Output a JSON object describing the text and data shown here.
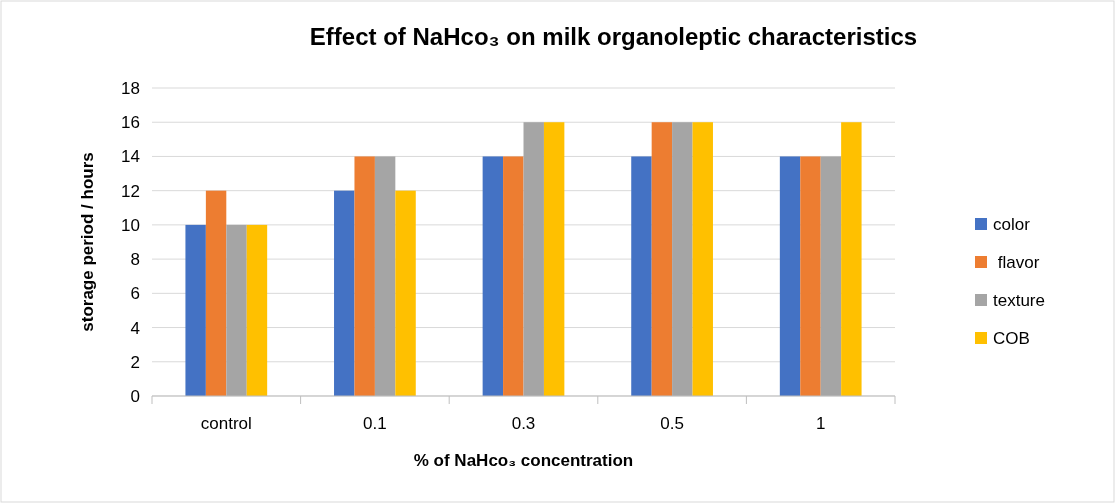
{
  "chart_data": {
    "type": "bar",
    "title": "Effect of NaHco₃ on milk organoleptic  characteristics",
    "xlabel": "% of NaHco₃ concentration",
    "ylabel": "storage period / hours",
    "categories": [
      "control",
      "0.1",
      "0.3",
      "0.5",
      "1"
    ],
    "series": [
      {
        "name": "color",
        "color": "#4472c4",
        "values": [
          10,
          12,
          14,
          14,
          14
        ]
      },
      {
        "name": " flavor",
        "color": "#ed7d31",
        "values": [
          12,
          14,
          14,
          16,
          14
        ]
      },
      {
        "name": "texture",
        "color": "#a5a5a5",
        "values": [
          10,
          14,
          16,
          16,
          14
        ]
      },
      {
        "name": "COB",
        "color": "#ffc000",
        "values": [
          10,
          12,
          16,
          16,
          16
        ]
      }
    ],
    "ylim": [
      0,
      18
    ],
    "yticks": [
      0,
      2,
      4,
      6,
      8,
      10,
      12,
      14,
      16,
      18
    ],
    "grid": "y",
    "legend": "right"
  }
}
